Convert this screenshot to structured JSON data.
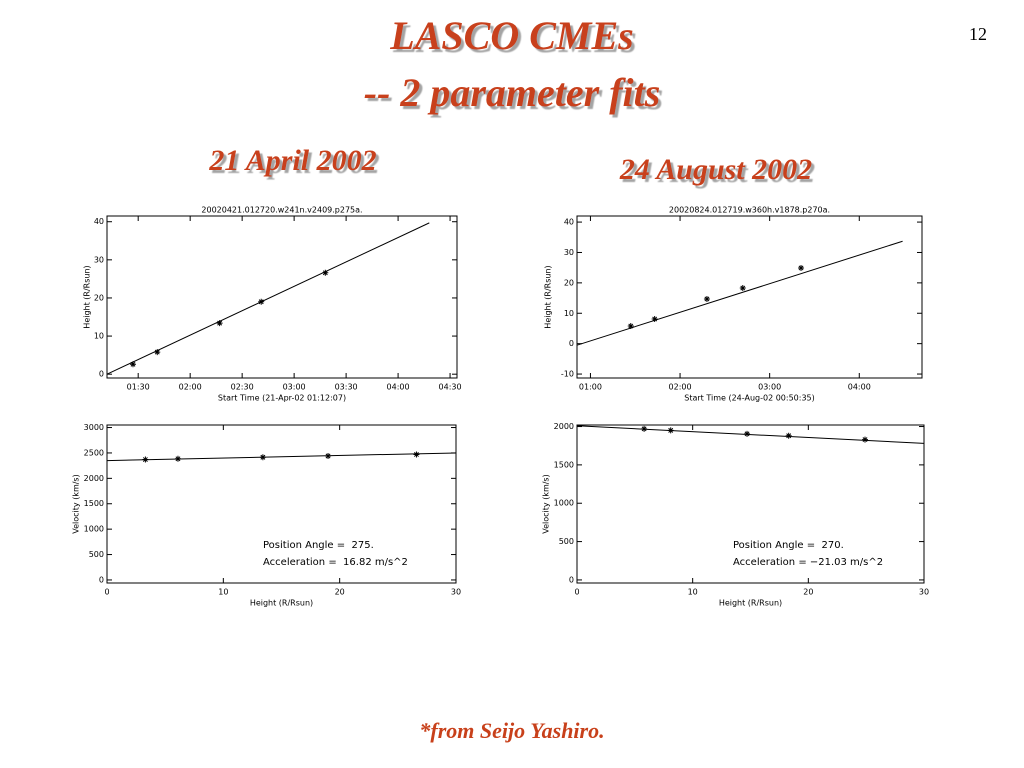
{
  "slide": {
    "title_lines": [
      "LASCO CMEs",
      "-- 2 parameter fits"
    ],
    "page_number": "12",
    "captions": [
      "21 April 2002",
      "24 August 2002"
    ],
    "footnote": "*from Seijo Yashiro."
  },
  "chart_data": [
    {
      "type": "scatter",
      "title": "20020421.012720.w241n.v2409.p275a.",
      "x_label": "Start Time (21-Apr-02 01:12:07)",
      "y_label": "Height (R/Rsun)",
      "xlim": [
        "01:12",
        "04:34"
      ],
      "xticks": [
        "01:30",
        "02:00",
        "02:30",
        "03:00",
        "03:30",
        "04:00",
        "04:30"
      ],
      "ylim": [
        -1,
        41.5
      ],
      "yticks": [
        0,
        10,
        20,
        30,
        40
      ],
      "series": [
        {
          "style": "points",
          "color": "#000000",
          "x": [
            "01:27",
            "01:41",
            "02:17",
            "02:41",
            "03:18"
          ],
          "values": [
            2.6,
            5.8,
            13.4,
            19,
            26.6
          ]
        },
        {
          "style": "line",
          "color": "#000000",
          "x": [
            "01:12",
            "04:18"
          ],
          "values": [
            0,
            39.7
          ]
        }
      ]
    },
    {
      "type": "scatter",
      "title": "20020824.012719.w360h.v1878.p270a.",
      "x_label": "Start Time (24-Aug-02 00:50:35)",
      "y_label": "Height (R/Rsun)",
      "xlim": [
        "00:51",
        "04:42"
      ],
      "xticks": [
        "01:00",
        "02:00",
        "03:00",
        "04:00"
      ],
      "ylim": [
        -11.3,
        42
      ],
      "yticks": [
        -10,
        0,
        10,
        20,
        30,
        40
      ],
      "series": [
        {
          "style": "points",
          "color": "#000000",
          "x": [
            "01:27",
            "01:43",
            "02:18",
            "02:42",
            "03:21"
          ],
          "values": [
            5.8,
            8.1,
            14.7,
            18.3,
            24.9
          ]
        },
        {
          "style": "line",
          "color": "#000000",
          "x": [
            "00:51",
            "04:29"
          ],
          "values": [
            -0.5,
            33.7
          ]
        }
      ]
    },
    {
      "type": "scatter",
      "x_label": "Height (R/Rsun)",
      "y_label": "Velocity (km/s)",
      "xlim": [
        0,
        30
      ],
      "xticks": [
        0,
        10,
        20,
        30
      ],
      "ylim": [
        -60,
        3050
      ],
      "yticks": [
        0,
        500,
        1000,
        1500,
        2000,
        2500,
        3000
      ],
      "annotations": [
        "Position Angle =  275.",
        "Acceleration =  16.82 m/s^2"
      ],
      "series": [
        {
          "style": "points",
          "color": "#000000",
          "x": [
            3.3,
            6.1,
            13.4,
            19,
            26.6
          ],
          "values": [
            2370,
            2385,
            2415,
            2440,
            2470
          ]
        },
        {
          "style": "line",
          "color": "#000000",
          "x": [
            0,
            30
          ],
          "values": [
            2350,
            2500
          ]
        }
      ]
    },
    {
      "type": "scatter",
      "x_label": "Height (R/Rsun)",
      "y_label": "Velocity (km/s)",
      "xlim": [
        0,
        30
      ],
      "xticks": [
        0,
        10,
        20,
        30
      ],
      "ylim": [
        -40,
        2020
      ],
      "yticks": [
        0,
        500,
        1000,
        1500,
        2000
      ],
      "annotations": [
        "Position Angle =  270.",
        "Acceleration = −21.03 m/s^2"
      ],
      "series": [
        {
          "style": "points",
          "color": "#000000",
          "x": [
            5.8,
            8.1,
            14.7,
            18.3,
            24.9
          ],
          "values": [
            1970,
            1950,
            1905,
            1880,
            1830
          ]
        },
        {
          "style": "line",
          "color": "#000000",
          "x": [
            0,
            30
          ],
          "values": [
            2010,
            1780
          ]
        }
      ]
    }
  ]
}
